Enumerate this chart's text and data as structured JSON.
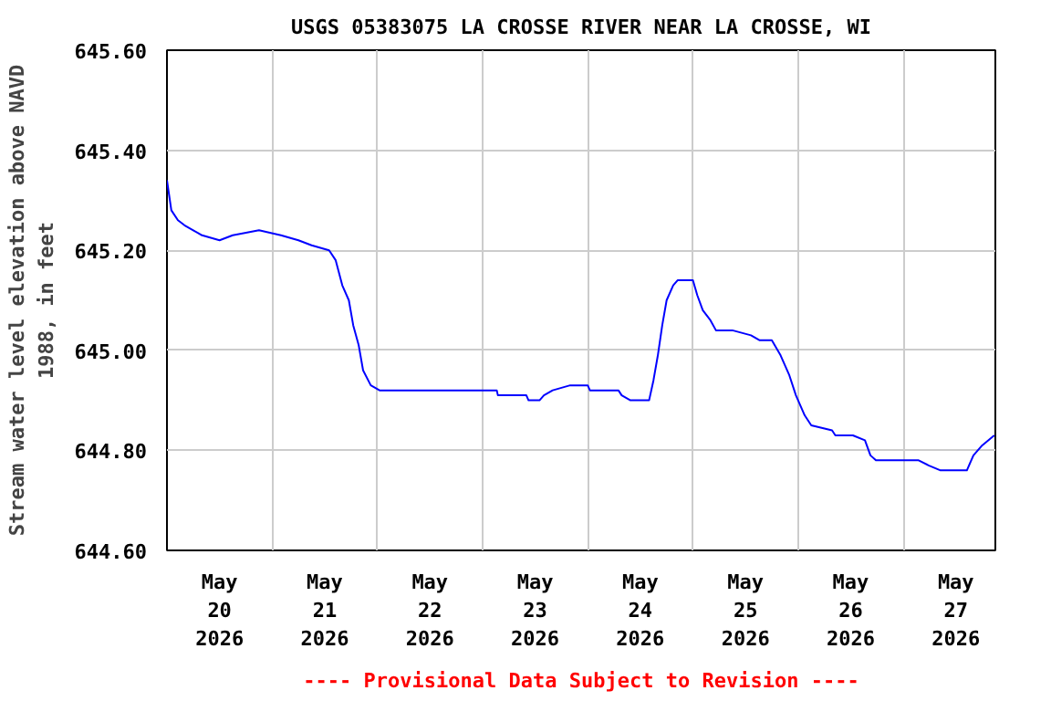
{
  "chart_data": {
    "type": "line",
    "title": "USGS 05383075 LA CROSSE RIVER NEAR LA CROSSE, WI",
    "ylabel": "Stream water level elevation above NAVD\n1988, in feet",
    "annotations": [
      "---- Provisional Data Subject to Revision ----"
    ],
    "xlim": [
      "2026-05-20T00:00",
      "2026-05-27T21:00"
    ],
    "xticks": [
      {
        "value": "2026-05-20T12:00",
        "label": "May\n20\n2026"
      },
      {
        "value": "2026-05-21T00:00",
        "label": null
      },
      {
        "value": "2026-05-21T12:00",
        "label": "May\n21\n2026"
      },
      {
        "value": "2026-05-22T00:00",
        "label": null
      },
      {
        "value": "2026-05-22T12:00",
        "label": "May\n22\n2026"
      },
      {
        "value": "2026-05-23T00:00",
        "label": null
      },
      {
        "value": "2026-05-23T12:00",
        "label": "May\n23\n2026"
      },
      {
        "value": "2026-05-24T00:00",
        "label": null
      },
      {
        "value": "2026-05-24T12:00",
        "label": "May\n24\n2026"
      },
      {
        "value": "2026-05-25T00:00",
        "label": null
      },
      {
        "value": "2026-05-25T12:00",
        "label": "May\n25\n2026"
      },
      {
        "value": "2026-05-26T00:00",
        "label": null
      },
      {
        "value": "2026-05-26T12:00",
        "label": "May\n26\n2026"
      },
      {
        "value": "2026-05-27T00:00",
        "label": null
      },
      {
        "value": "2026-05-27T12:00",
        "label": "May\n27\n2026"
      }
    ],
    "ylim": [
      644.6,
      645.6
    ],
    "yticks": [
      {
        "value": 644.6,
        "label": "644.60"
      },
      {
        "value": 644.8,
        "label": "644.80"
      },
      {
        "value": 645.0,
        "label": "645.00"
      },
      {
        "value": 645.2,
        "label": "645.20"
      },
      {
        "value": 645.4,
        "label": "645.40"
      },
      {
        "value": 645.6,
        "label": "645.60"
      }
    ],
    "grid": true,
    "series": [
      {
        "color": "#0000ff",
        "x": [
          "2026-05-20T00:00",
          "2026-05-20T01:00",
          "2026-05-20T02:30",
          "2026-05-20T04:00",
          "2026-05-20T06:00",
          "2026-05-20T08:00",
          "2026-05-20T12:00",
          "2026-05-20T15:00",
          "2026-05-20T21:00",
          "2026-05-21T02:00",
          "2026-05-21T06:00",
          "2026-05-21T09:00",
          "2026-05-21T13:00",
          "2026-05-21T14:30",
          "2026-05-21T16:00",
          "2026-05-21T17:30",
          "2026-05-21T18:30",
          "2026-05-21T19:45",
          "2026-05-21T20:45",
          "2026-05-21T22:30",
          "2026-05-22T00:30",
          "2026-05-23T03:15",
          "2026-05-23T03:30",
          "2026-05-23T10:00",
          "2026-05-23T10:30",
          "2026-05-23T13:00",
          "2026-05-23T14:00",
          "2026-05-23T16:00",
          "2026-05-23T20:00",
          "2026-05-24T00:00",
          "2026-05-24T00:30",
          "2026-05-24T07:00",
          "2026-05-24T07:45",
          "2026-05-24T09:45",
          "2026-05-24T14:00",
          "2026-05-24T15:00",
          "2026-05-24T16:00",
          "2026-05-24T17:00",
          "2026-05-24T18:00",
          "2026-05-24T19:30",
          "2026-05-24T20:30",
          "2026-05-25T00:00",
          "2026-05-25T01:00",
          "2026-05-25T02:15",
          "2026-05-25T04:00",
          "2026-05-25T05:15",
          "2026-05-25T09:00",
          "2026-05-25T13:15",
          "2026-05-25T15:15",
          "2026-05-25T18:00",
          "2026-05-25T20:00",
          "2026-05-25T22:00",
          "2026-05-25T23:30",
          "2026-05-26T01:30",
          "2026-05-26T03:00",
          "2026-05-26T07:45",
          "2026-05-26T08:30",
          "2026-05-26T12:30",
          "2026-05-26T15:15",
          "2026-05-26T16:30",
          "2026-05-26T17:45",
          "2026-05-27T03:30",
          "2026-05-27T05:45",
          "2026-05-27T08:30",
          "2026-05-27T14:30",
          "2026-05-27T16:00",
          "2026-05-27T18:00",
          "2026-05-27T20:45"
        ],
        "values": [
          645.34,
          645.28,
          645.26,
          645.25,
          645.24,
          645.23,
          645.22,
          645.23,
          645.24,
          645.23,
          645.22,
          645.21,
          645.2,
          645.18,
          645.13,
          645.1,
          645.05,
          645.01,
          644.96,
          644.93,
          644.92,
          644.92,
          644.91,
          644.91,
          644.9,
          644.9,
          644.91,
          644.92,
          644.93,
          644.93,
          644.92,
          644.92,
          644.91,
          644.9,
          644.9,
          644.94,
          644.99,
          645.05,
          645.1,
          645.13,
          645.14,
          645.14,
          645.11,
          645.08,
          645.06,
          645.04,
          645.04,
          645.03,
          645.02,
          645.02,
          644.99,
          644.95,
          644.91,
          644.87,
          644.85,
          644.84,
          644.83,
          644.83,
          644.82,
          644.79,
          644.78,
          644.78,
          644.77,
          644.76,
          644.76,
          644.79,
          644.81,
          644.83
        ]
      }
    ]
  }
}
